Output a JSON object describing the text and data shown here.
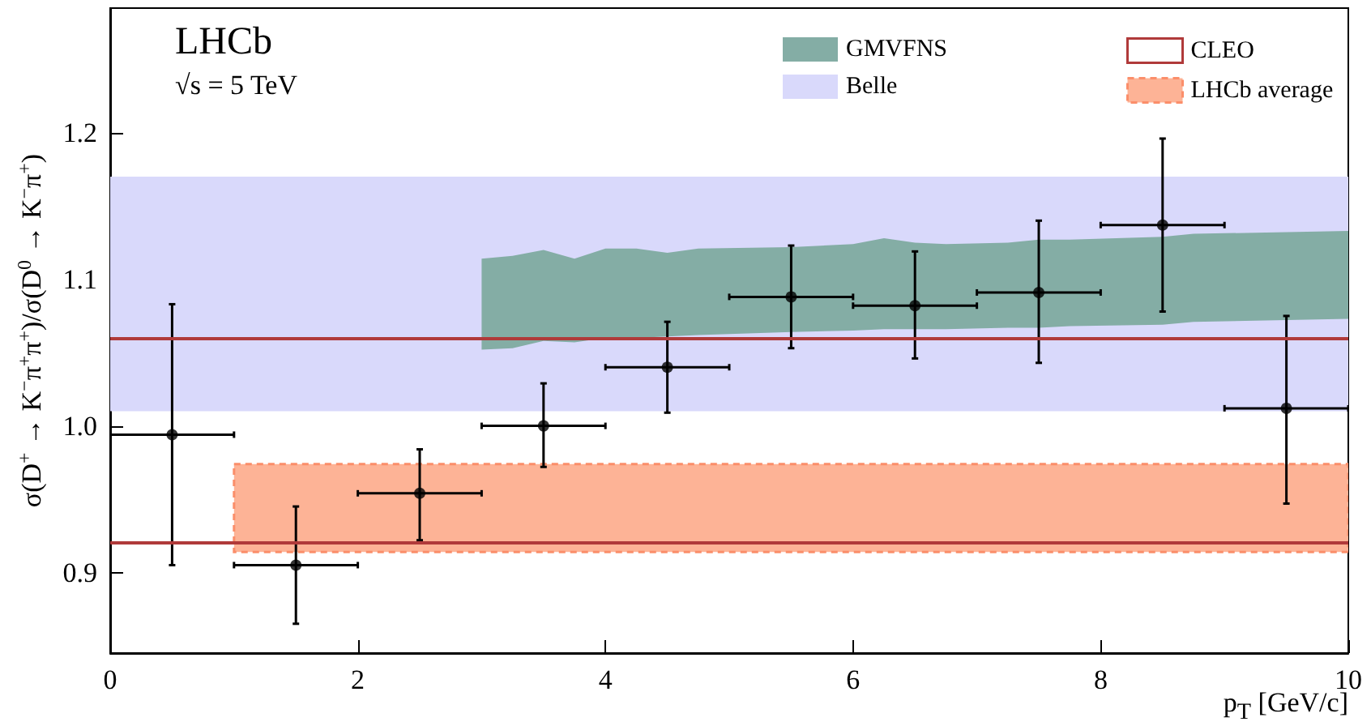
{
  "chart_data": {
    "type": "scatter",
    "xlabel": "p$_{T}$ [GeV/c]",
    "ylabel": "σ(D$^{+}$ → K$^{−}$π$^{+}$π$^{+}$)/σ(D$^{0}$ → K$^{−}$π$^{+}$)",
    "annotations": [
      "LHCb",
      "√s = 5 TeV"
    ],
    "xlim": [
      0,
      10
    ],
    "xticks": [
      0,
      2,
      4,
      6,
      8,
      10
    ],
    "ylim": [
      0.845,
      1.285
    ],
    "yticks": [
      {
        "value": 0.9,
        "label": "0.9"
      },
      {
        "value": 1.0,
        "label": "1.0"
      },
      {
        "value": 1.1,
        "label": "1.1"
      },
      {
        "value": 1.2,
        "label": "1.2"
      }
    ],
    "legend": "top right",
    "bands": [
      {
        "axis": "y",
        "from": 1.01,
        "to": 1.17,
        "label": "Belle",
        "color": "#d9d9fb"
      }
    ],
    "ref_lines": [
      {
        "axis": "y",
        "value": 1.06,
        "label": "CLEO",
        "color": "#b03a3a"
      },
      {
        "axis": "y",
        "value": 0.92,
        "color": "#b03a3a"
      }
    ],
    "series": [
      {
        "name": "GMVFNS",
        "type": "area",
        "color": "#84ada5",
        "x": [
          3,
          3.25,
          3.5,
          3.75,
          4,
          4.25,
          4.5,
          4.75,
          5.5,
          6,
          6.25,
          6.5,
          6.75,
          7.25,
          7.5,
          7.75,
          8.5,
          8.75,
          10
        ],
        "values": [
          null,
          null,
          null,
          null,
          null,
          null,
          null,
          null,
          null,
          null,
          null,
          null,
          null,
          null,
          null,
          null,
          null,
          null,
          null
        ],
        "upper": [
          1.114,
          1.116,
          1.12,
          1.114,
          1.121,
          1.121,
          1.118,
          1.121,
          1.122,
          1.124,
          1.128,
          1.125,
          1.124,
          1.125,
          1.127,
          1.127,
          1.129,
          1.131,
          1.133
        ],
        "lower": [
          1.052,
          1.053,
          1.058,
          1.057,
          1.06,
          1.06,
          1.061,
          1.062,
          1.064,
          1.065,
          1.066,
          1.066,
          1.066,
          1.067,
          1.067,
          1.068,
          1.069,
          1.071,
          1.073
        ]
      },
      {
        "name": "LHCb average",
        "type": "area",
        "color": "#fdb396",
        "line_style": "dashed",
        "x": [
          1,
          10
        ],
        "values": [
          null,
          null
        ],
        "upper": [
          0.974,
          0.974
        ],
        "lower": [
          0.914,
          0.914
        ]
      },
      {
        "color": "#000000",
        "marker": "circle",
        "x": [
          0.5,
          1.5,
          2.5,
          3.5,
          4.5,
          5.5,
          6.5,
          7.5,
          8.5,
          9.5
        ],
        "values": [
          0.994,
          0.905,
          0.954,
          1.0,
          1.04,
          1.088,
          1.082,
          1.091,
          1.137,
          1.012
        ],
        "errors": [
          [
            0.905,
            1.083
          ],
          [
            0.865,
            0.945
          ],
          [
            0.922,
            0.984
          ],
          [
            0.972,
            1.029
          ],
          [
            1.009,
            1.071
          ],
          [
            1.053,
            1.123
          ],
          [
            1.046,
            1.119
          ],
          [
            1.043,
            1.14
          ],
          [
            1.078,
            1.196
          ],
          [
            0.947,
            1.075
          ]
        ],
        "xerrors": [
          0.5,
          0.5,
          0.5,
          0.5,
          0.5,
          0.5,
          0.5,
          0.5,
          0.5,
          0.5
        ]
      }
    ]
  }
}
